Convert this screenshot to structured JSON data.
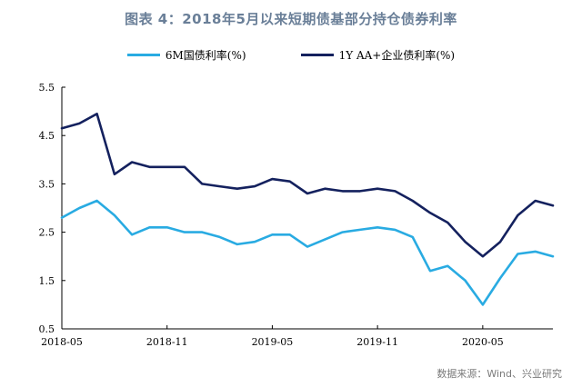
{
  "title": "图表 4：2018年5月以来短期债基部分持仓债券利率",
  "source": "数据来源：Wind、兴业研究",
  "chart_data": {
    "type": "line",
    "title": "图表 4：2018年5月以来短期债基部分持仓债券利率",
    "xlabel": "",
    "ylabel": "",
    "ylim": [
      0.5,
      5.5
    ],
    "yticks": [
      "5.5",
      "4.5",
      "3.5",
      "2.5",
      "1.5",
      "0.5"
    ],
    "xlim": [
      "2018-05",
      "2020-09"
    ],
    "xticks": [
      "2018-05",
      "2018-11",
      "2019-05",
      "2019-11",
      "2020-05"
    ],
    "legend_position": "top-center",
    "grid": false,
    "x": [
      "2018-05",
      "2018-06",
      "2018-07",
      "2018-08",
      "2018-09",
      "2018-10",
      "2018-11",
      "2018-12",
      "2019-01",
      "2019-02",
      "2019-03",
      "2019-04",
      "2019-05",
      "2019-06",
      "2019-07",
      "2019-08",
      "2019-09",
      "2019-10",
      "2019-11",
      "2019-12",
      "2020-01",
      "2020-02",
      "2020-03",
      "2020-04",
      "2020-05",
      "2020-06",
      "2020-07",
      "2020-08",
      "2020-09"
    ],
    "series": [
      {
        "name": "6M国债利率(%)",
        "color": "#29abe2",
        "values": [
          2.8,
          3.0,
          3.15,
          2.85,
          2.45,
          2.6,
          2.6,
          2.5,
          2.5,
          2.4,
          2.25,
          2.3,
          2.45,
          2.45,
          2.2,
          2.35,
          2.5,
          2.55,
          2.6,
          2.55,
          2.4,
          1.7,
          1.8,
          1.5,
          1.0,
          1.55,
          2.05,
          2.1,
          2.0
        ]
      },
      {
        "name": "1Y AA+企业债利率(%)",
        "color": "#14215e",
        "values": [
          4.65,
          4.75,
          4.95,
          3.7,
          3.95,
          3.85,
          3.85,
          3.85,
          3.5,
          3.45,
          3.4,
          3.45,
          3.6,
          3.55,
          3.3,
          3.4,
          3.35,
          3.35,
          3.4,
          3.35,
          3.15,
          2.9,
          2.7,
          2.3,
          2.0,
          2.3,
          2.85,
          3.15,
          3.05
        ]
      }
    ]
  }
}
